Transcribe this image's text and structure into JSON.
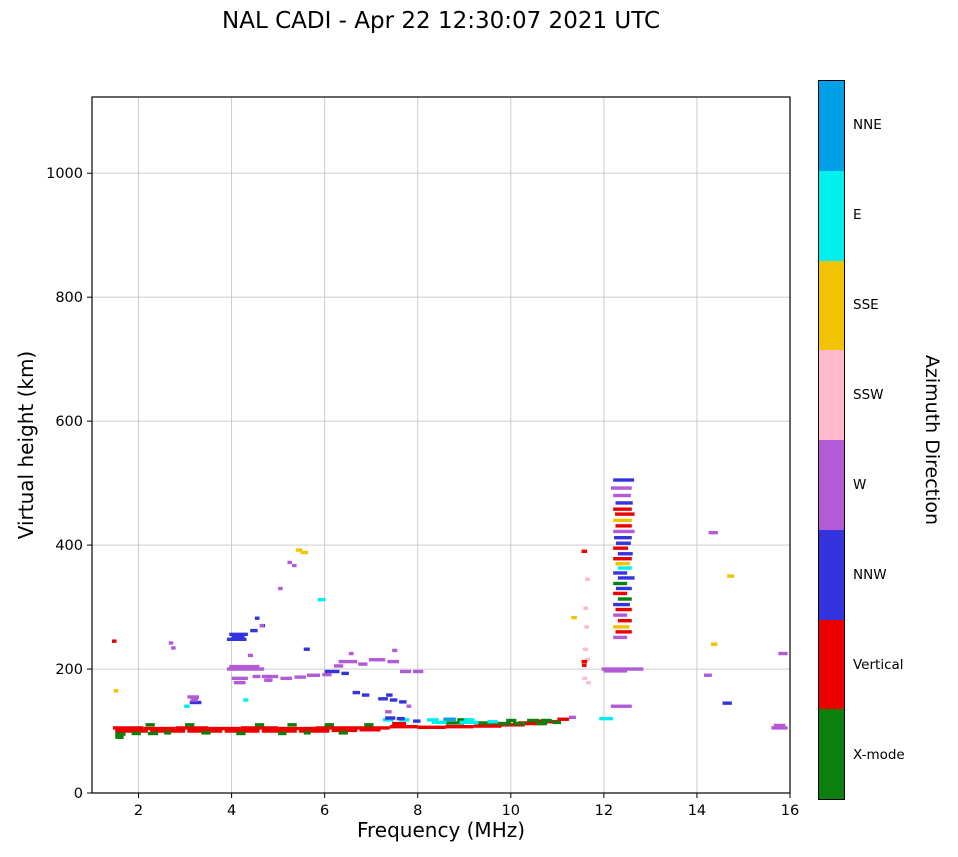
{
  "title": "NAL CADI - Apr 22 12:30:07 2021 UTC",
  "chart_data": {
    "type": "scatter",
    "title": "NAL CADI - Apr 22 12:30:07 2021 UTC",
    "xlabel": "Frequency (MHz)",
    "ylabel": "Virtual height (km)",
    "xlim": [
      1,
      16
    ],
    "ylim": [
      0,
      1123
    ],
    "xticks": [
      2,
      4,
      6,
      8,
      10,
      12,
      14,
      16
    ],
    "yticks": [
      0,
      200,
      400,
      600,
      800,
      1000
    ],
    "grid": true,
    "marker": "horizontal-dash",
    "colorbar": {
      "title": "Azimuth Direction",
      "entries": [
        {
          "label": "NNE",
          "code": "NNE",
          "color": "#009FE8"
        },
        {
          "label": "E",
          "code": "E",
          "color": "#00F0F0"
        },
        {
          "label": "SSE",
          "code": "SSE",
          "color": "#F2C300"
        },
        {
          "label": "SSW",
          "code": "SSW",
          "color": "#FFB9CB"
        },
        {
          "label": "W",
          "code": "W",
          "color": "#B35BD6"
        },
        {
          "label": "NNW",
          "code": "NNW",
          "color": "#3434DE"
        },
        {
          "label": "Vertical",
          "code": "V",
          "color": "#EC0000"
        },
        {
          "label": "X-mode",
          "code": "X",
          "color": "#0C800C"
        }
      ]
    },
    "points_format": [
      "freq_start_MHz",
      "freq_end_MHz",
      "virtual_height_km",
      "azimuth_code"
    ],
    "points": [
      [
        1.45,
        2.1,
        105,
        "V"
      ],
      [
        2.1,
        2.8,
        104,
        "V"
      ],
      [
        2.8,
        3.5,
        105,
        "V"
      ],
      [
        3.5,
        4.2,
        104,
        "V"
      ],
      [
        4.2,
        5.0,
        105,
        "V"
      ],
      [
        5.0,
        5.8,
        104,
        "V"
      ],
      [
        5.8,
        6.6,
        105,
        "V"
      ],
      [
        6.6,
        7.4,
        105,
        "V"
      ],
      [
        7.4,
        8.0,
        107,
        "V"
      ],
      [
        8.0,
        8.6,
        106,
        "V"
      ],
      [
        8.6,
        9.2,
        107,
        "V"
      ],
      [
        9.2,
        9.8,
        108,
        "V"
      ],
      [
        9.8,
        10.3,
        110,
        "V"
      ],
      [
        10.3,
        10.7,
        112,
        "V"
      ],
      [
        10.7,
        11.0,
        115,
        "V"
      ],
      [
        11.0,
        11.25,
        119,
        "V"
      ],
      [
        1.5,
        2.2,
        100,
        "V"
      ],
      [
        2.25,
        3.0,
        100,
        "V"
      ],
      [
        3.05,
        3.8,
        100,
        "V"
      ],
      [
        3.85,
        4.6,
        100,
        "V"
      ],
      [
        4.65,
        5.4,
        100,
        "V"
      ],
      [
        5.45,
        6.1,
        100,
        "V"
      ],
      [
        6.15,
        6.7,
        101,
        "V"
      ],
      [
        6.75,
        7.2,
        102,
        "V"
      ],
      [
        7.45,
        7.75,
        112,
        "V"
      ],
      [
        9.55,
        9.85,
        112,
        "V"
      ],
      [
        10.15,
        10.45,
        113,
        "V"
      ],
      [
        10.5,
        10.85,
        116,
        "V"
      ],
      [
        1.5,
        1.72,
        95,
        "X"
      ],
      [
        1.85,
        2.05,
        96,
        "X"
      ],
      [
        2.2,
        2.42,
        96,
        "X"
      ],
      [
        2.55,
        2.7,
        97,
        "X"
      ],
      [
        3.35,
        3.55,
        97,
        "X"
      ],
      [
        4.1,
        4.3,
        96,
        "X"
      ],
      [
        5.0,
        5.18,
        96,
        "X"
      ],
      [
        5.55,
        5.7,
        97,
        "X"
      ],
      [
        6.3,
        6.5,
        97,
        "X"
      ],
      [
        2.15,
        2.35,
        110,
        "X"
      ],
      [
        3.0,
        3.2,
        110,
        "X"
      ],
      [
        4.5,
        4.7,
        110,
        "X"
      ],
      [
        5.2,
        5.4,
        110,
        "X"
      ],
      [
        6.0,
        6.2,
        110,
        "X"
      ],
      [
        6.85,
        7.05,
        110,
        "X"
      ],
      [
        1.5,
        1.68,
        90,
        "X"
      ],
      [
        8.6,
        9.0,
        113,
        "X"
      ],
      [
        9.3,
        9.62,
        113,
        "X"
      ],
      [
        9.7,
        10.0,
        112,
        "X"
      ],
      [
        10.05,
        10.32,
        112,
        "X"
      ],
      [
        10.55,
        10.78,
        112,
        "X"
      ],
      [
        9.9,
        10.12,
        117,
        "X"
      ],
      [
        10.35,
        10.6,
        117,
        "X"
      ],
      [
        10.65,
        10.88,
        117,
        "X"
      ],
      [
        8.85,
        9.1,
        118,
        "X"
      ],
      [
        10.9,
        11.08,
        114,
        "X"
      ],
      [
        12.2,
        12.5,
        338,
        "X"
      ],
      [
        12.3,
        12.6,
        313,
        "X"
      ],
      [
        7.25,
        7.48,
        118,
        "E"
      ],
      [
        7.6,
        7.82,
        118,
        "E"
      ],
      [
        8.2,
        8.45,
        118,
        "E"
      ],
      [
        8.55,
        8.82,
        119,
        "NNE"
      ],
      [
        9.0,
        9.22,
        118,
        "E"
      ],
      [
        8.3,
        8.62,
        114,
        "E"
      ],
      [
        8.9,
        9.3,
        114,
        "E"
      ],
      [
        9.5,
        9.72,
        115,
        "E"
      ],
      [
        2.98,
        3.1,
        140,
        "E"
      ],
      [
        4.25,
        4.36,
        150,
        "E"
      ],
      [
        5.85,
        6.02,
        312,
        "E"
      ],
      [
        11.9,
        12.2,
        120,
        "E"
      ],
      [
        12.3,
        12.6,
        363,
        "E"
      ],
      [
        3.9,
        4.32,
        248,
        "NNW"
      ],
      [
        3.95,
        4.35,
        256,
        "NNW"
      ],
      [
        4.0,
        4.28,
        252,
        "NNW"
      ],
      [
        4.4,
        4.56,
        262,
        "NNW"
      ],
      [
        4.5,
        4.6,
        282,
        "NNW"
      ],
      [
        4.62,
        4.72,
        270,
        "NNW"
      ],
      [
        6.0,
        6.32,
        196,
        "NNW"
      ],
      [
        6.36,
        6.52,
        193,
        "NNW"
      ],
      [
        6.6,
        6.76,
        162,
        "NNW"
      ],
      [
        6.8,
        6.96,
        158,
        "NNW"
      ],
      [
        7.15,
        7.36,
        152,
        "NNW"
      ],
      [
        7.4,
        7.56,
        150,
        "NNW"
      ],
      [
        7.32,
        7.46,
        158,
        "NNW"
      ],
      [
        7.6,
        7.76,
        147,
        "NNW"
      ],
      [
        5.55,
        5.68,
        232,
        "NNW"
      ],
      [
        3.1,
        3.35,
        146,
        "NNW"
      ],
      [
        7.3,
        7.52,
        121,
        "NNW"
      ],
      [
        7.55,
        7.72,
        120,
        "NNW"
      ],
      [
        7.9,
        8.06,
        116,
        "NNW"
      ],
      [
        14.55,
        14.75,
        145,
        "NNW"
      ],
      [
        12.2,
        12.65,
        505,
        "NNW"
      ],
      [
        12.25,
        12.62,
        468,
        "NNW"
      ],
      [
        12.22,
        12.6,
        412,
        "NNW"
      ],
      [
        12.26,
        12.58,
        403,
        "NNW"
      ],
      [
        12.3,
        12.62,
        386,
        "NNW"
      ],
      [
        12.2,
        12.5,
        355,
        "NNW"
      ],
      [
        12.3,
        12.66,
        347,
        "NNW"
      ],
      [
        12.26,
        12.6,
        330,
        "NNW"
      ],
      [
        12.2,
        12.56,
        304,
        "NNW"
      ],
      [
        3.05,
        3.3,
        155,
        "W"
      ],
      [
        3.12,
        3.28,
        150,
        "W"
      ],
      [
        3.9,
        4.7,
        200,
        "W"
      ],
      [
        3.95,
        4.6,
        204,
        "W"
      ],
      [
        4.0,
        4.35,
        185,
        "W"
      ],
      [
        4.05,
        4.3,
        178,
        "W"
      ],
      [
        4.45,
        4.62,
        188,
        "W"
      ],
      [
        4.65,
        5.0,
        188,
        "W"
      ],
      [
        5.05,
        5.3,
        185,
        "W"
      ],
      [
        5.35,
        5.6,
        187,
        "W"
      ],
      [
        5.62,
        5.9,
        190,
        "W"
      ],
      [
        5.95,
        6.15,
        191,
        "W"
      ],
      [
        4.7,
        4.88,
        182,
        "W"
      ],
      [
        6.2,
        6.4,
        205,
        "W"
      ],
      [
        6.3,
        6.7,
        212,
        "W"
      ],
      [
        6.72,
        6.92,
        208,
        "W"
      ],
      [
        6.95,
        7.3,
        215,
        "W"
      ],
      [
        7.35,
        7.6,
        212,
        "W"
      ],
      [
        7.62,
        7.86,
        196,
        "W"
      ],
      [
        7.9,
        8.12,
        196,
        "W"
      ],
      [
        7.45,
        7.56,
        230,
        "W"
      ],
      [
        6.52,
        6.62,
        225,
        "W"
      ],
      [
        2.65,
        2.74,
        242,
        "W"
      ],
      [
        2.7,
        2.79,
        234,
        "W"
      ],
      [
        4.35,
        4.46,
        222,
        "W"
      ],
      [
        4.6,
        4.7,
        270,
        "W"
      ],
      [
        5.2,
        5.28,
        372,
        "W"
      ],
      [
        5.3,
        5.37,
        367,
        "W"
      ],
      [
        5.0,
        5.07,
        330,
        "W"
      ],
      [
        7.3,
        7.44,
        131,
        "W"
      ],
      [
        7.76,
        7.86,
        140,
        "W"
      ],
      [
        11.25,
        11.4,
        122,
        "W"
      ],
      [
        12.15,
        12.6,
        140,
        "W"
      ],
      [
        11.95,
        12.85,
        200,
        "W"
      ],
      [
        12.0,
        12.5,
        197,
        "W"
      ],
      [
        14.25,
        14.45,
        420,
        "W"
      ],
      [
        14.15,
        14.32,
        190,
        "W"
      ],
      [
        15.75,
        15.95,
        225,
        "W"
      ],
      [
        15.6,
        15.95,
        105,
        "W"
      ],
      [
        15.65,
        15.9,
        109,
        "W"
      ],
      [
        12.15,
        12.6,
        492,
        "W"
      ],
      [
        12.2,
        12.58,
        480,
        "W"
      ],
      [
        12.2,
        12.66,
        422,
        "W"
      ],
      [
        12.2,
        12.5,
        287,
        "W"
      ],
      [
        12.2,
        12.5,
        251,
        "W"
      ],
      [
        5.38,
        5.52,
        392,
        "SSE"
      ],
      [
        5.48,
        5.64,
        388,
        "SSE"
      ],
      [
        1.47,
        1.56,
        165,
        "SSE"
      ],
      [
        11.3,
        11.42,
        283,
        "SSE"
      ],
      [
        14.3,
        14.44,
        240,
        "SSE"
      ],
      [
        14.65,
        14.8,
        350,
        "SSE"
      ],
      [
        12.2,
        12.6,
        440,
        "SSE"
      ],
      [
        12.25,
        12.56,
        370,
        "SSE"
      ],
      [
        12.2,
        12.55,
        268,
        "SSE"
      ],
      [
        11.6,
        11.7,
        345,
        "SSW"
      ],
      [
        11.56,
        11.66,
        298,
        "SSW"
      ],
      [
        11.58,
        11.68,
        268,
        "SSW"
      ],
      [
        11.55,
        11.66,
        232,
        "SSW"
      ],
      [
        11.6,
        11.7,
        215,
        "SSW"
      ],
      [
        11.54,
        11.63,
        185,
        "SSW"
      ],
      [
        11.62,
        11.72,
        178,
        "SSW"
      ],
      [
        11.52,
        11.64,
        390,
        "V"
      ],
      [
        11.52,
        11.64,
        212,
        "V"
      ],
      [
        11.53,
        11.61,
        206,
        "V"
      ],
      [
        1.43,
        1.51,
        245,
        "V"
      ],
      [
        12.2,
        12.6,
        458,
        "V"
      ],
      [
        12.24,
        12.66,
        450,
        "V"
      ],
      [
        12.25,
        12.6,
        431,
        "V"
      ],
      [
        12.2,
        12.52,
        395,
        "V"
      ],
      [
        12.2,
        12.6,
        378,
        "V"
      ],
      [
        12.2,
        12.5,
        322,
        "V"
      ],
      [
        12.25,
        12.6,
        296,
        "V"
      ],
      [
        12.3,
        12.6,
        278,
        "V"
      ],
      [
        12.25,
        12.6,
        260,
        "V"
      ]
    ]
  }
}
